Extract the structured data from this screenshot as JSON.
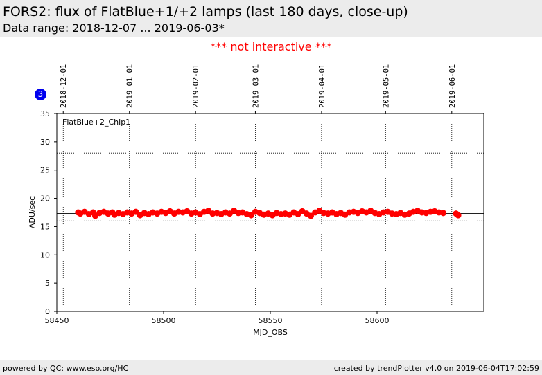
{
  "header": {
    "title": "FORS2: flux of FlatBlue+1/+2 lamps (last 180 days, close-up)",
    "subtitle": "Data range: 2018-12-07 ... 2019-06-03*"
  },
  "notice": "*** not interactive ***",
  "badge": "3",
  "footer": {
    "left": "powered by QC: www.eso.org/HC",
    "right": "created by trendPlotter v4.0 on 2019-06-04T17:02:59"
  },
  "chart_data": {
    "type": "scatter",
    "panel_label": "FlatBlue+2_Chip1",
    "xlabel": "MJD_OBS",
    "ylabel": "ADU/sec",
    "xlim": [
      58450,
      58650
    ],
    "ylim": [
      0,
      35
    ],
    "x_ticks": [
      58450,
      58500,
      58550,
      58600
    ],
    "y_ticks": [
      0,
      5,
      10,
      15,
      20,
      25,
      30,
      35
    ],
    "date_ticks": [
      {
        "label": "2018-12-01",
        "mjd": 58453
      },
      {
        "label": "2019-01-01",
        "mjd": 58484
      },
      {
        "label": "2019-02-01",
        "mjd": 58515
      },
      {
        "label": "2019-03-01",
        "mjd": 58543
      },
      {
        "label": "2019-04-01",
        "mjd": 58574
      },
      {
        "label": "2019-05-01",
        "mjd": 58604
      },
      {
        "label": "2019-06-01",
        "mjd": 58635
      }
    ],
    "reference_lines": {
      "median": 17.3,
      "lower": 16.0,
      "upper": 28.0
    },
    "marker_color": "#ff0000",
    "series": [
      {
        "x": [
          58460,
          58461,
          58463,
          58465,
          58467,
          58468,
          58470,
          58472,
          58474,
          58476,
          58477,
          58479,
          58481,
          58483,
          58485,
          58487,
          58489,
          58491,
          58493,
          58495,
          58497,
          58499,
          58501,
          58503,
          58505,
          58507,
          58509,
          58511,
          58513,
          58515,
          58517,
          58519,
          58521,
          58523,
          58525,
          58527,
          58529,
          58531,
          58533,
          58535,
          58537,
          58539,
          58541,
          58543,
          58545,
          58547,
          58549,
          58551,
          58553,
          58555,
          58557,
          58559,
          58561,
          58563,
          58565,
          58567,
          58569,
          58571,
          58573,
          58575,
          58577,
          58579,
          58581,
          58583,
          58585,
          58587,
          58589,
          58591,
          58593,
          58595,
          58597,
          58599,
          58601,
          58603,
          58605,
          58607,
          58609,
          58611,
          58613,
          58615,
          58617,
          58619,
          58621,
          58623,
          58625,
          58627,
          58629,
          58631,
          58637,
          58638
        ],
        "y": [
          17.5,
          17.3,
          17.6,
          17.2,
          17.5,
          16.9,
          17.4,
          17.6,
          17.3,
          17.5,
          17.1,
          17.4,
          17.2,
          17.5,
          17.3,
          17.6,
          17.0,
          17.4,
          17.2,
          17.5,
          17.3,
          17.6,
          17.4,
          17.7,
          17.3,
          17.6,
          17.5,
          17.7,
          17.3,
          17.5,
          17.2,
          17.6,
          17.8,
          17.3,
          17.4,
          17.2,
          17.5,
          17.3,
          17.8,
          17.4,
          17.5,
          17.2,
          17.0,
          17.6,
          17.4,
          17.1,
          17.3,
          17.0,
          17.4,
          17.2,
          17.3,
          17.1,
          17.5,
          17.2,
          17.7,
          17.3,
          16.9,
          17.5,
          17.8,
          17.4,
          17.3,
          17.5,
          17.2,
          17.4,
          17.1,
          17.5,
          17.6,
          17.4,
          17.7,
          17.5,
          17.8,
          17.4,
          17.2,
          17.5,
          17.6,
          17.3,
          17.2,
          17.4,
          17.1,
          17.3,
          17.6,
          17.8,
          17.5,
          17.4,
          17.6,
          17.7,
          17.5,
          17.4,
          17.3,
          17.0
        ]
      }
    ]
  }
}
